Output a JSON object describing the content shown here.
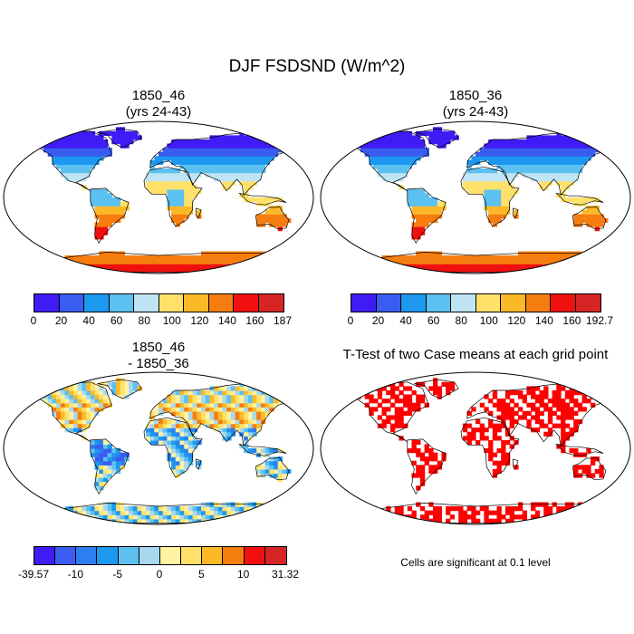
{
  "main_title": "DJF FSDSND (W/m^2)",
  "panels": [
    {
      "id": "p1",
      "title_line1": "1850_46",
      "title_line2": "(yrs 24-43)",
      "style": "abs"
    },
    {
      "id": "p2",
      "title_line1": "1850_36",
      "title_line2": "(yrs 24-43)",
      "style": "abs"
    },
    {
      "id": "p3",
      "title_line1": "1850_46",
      "title_line2": "- 1850_36",
      "style": "diff"
    },
    {
      "id": "p4",
      "title_line1": "T-Test of two Case means at each grid point",
      "title_line2": "",
      "style": "ttest"
    }
  ],
  "colorbars": {
    "abs1": {
      "colors": [
        "#3f1cf5",
        "#3a5cf0",
        "#1d98f0",
        "#5cc0f0",
        "#bfe5f5",
        "#ffe16a",
        "#fbb928",
        "#f67d10",
        "#f01010",
        "#d52525"
      ],
      "labels": [
        "0",
        "20",
        "40",
        "60",
        "80",
        "100",
        "120",
        "140",
        "160",
        "187"
      ]
    },
    "abs2": {
      "colors": [
        "#3f1cf5",
        "#3a5cf0",
        "#1d98f0",
        "#5cc0f0",
        "#bfe5f5",
        "#ffe16a",
        "#fbb928",
        "#f67d10",
        "#f01010",
        "#d52525"
      ],
      "labels": [
        "0",
        "20",
        "40",
        "60",
        "80",
        "100",
        "120",
        "140",
        "160",
        "192.7"
      ]
    },
    "diff": {
      "colors": [
        "#3f1cf5",
        "#3a5cf0",
        "#2b7ff0",
        "#1d98f0",
        "#5cc0f0",
        "#a8d8f0",
        "#fff2a0",
        "#ffe16a",
        "#fbb928",
        "#f67d10",
        "#f01010",
        "#d52525"
      ],
      "labels": [
        "-39.57",
        "-10",
        "-5",
        "0",
        "5",
        "10",
        "31.32"
      ]
    }
  },
  "ttest_note": "Cells are significant at 0.1 level"
}
